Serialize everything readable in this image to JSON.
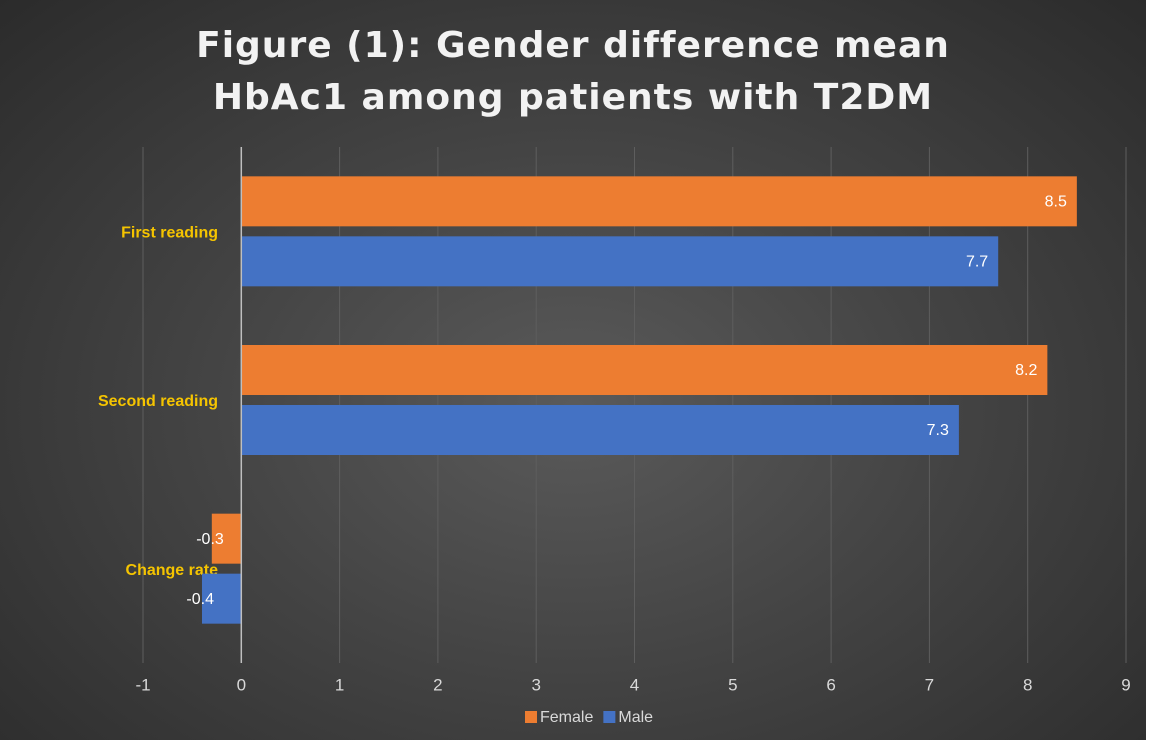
{
  "chart_data": {
    "type": "bar",
    "orientation": "horizontal",
    "title": "Figure (1): Gender difference mean HbAc1 among patients with T2DM",
    "categories": [
      "First reading",
      "Second reading",
      "Change rate"
    ],
    "series": [
      {
        "name": "Female",
        "color": "#ed7d31",
        "values": [
          8.5,
          8.2,
          -0.3
        ]
      },
      {
        "name": "Male",
        "color": "#4472c4",
        "values": [
          7.7,
          7.3,
          -0.4
        ]
      }
    ],
    "xlim": [
      -1,
      9
    ],
    "xticks": [
      -1,
      0,
      1,
      2,
      3,
      4,
      5,
      6,
      7,
      8,
      9
    ],
    "grid": true,
    "legend": "bottom"
  }
}
